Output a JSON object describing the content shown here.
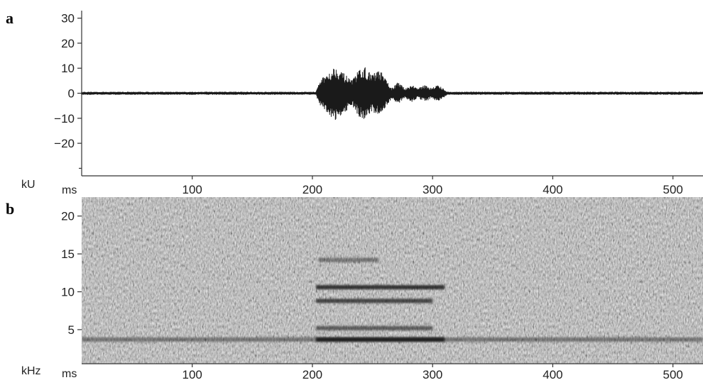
{
  "chart_data": [
    {
      "panel": "a",
      "type": "line",
      "title": "",
      "y_unit": "kU",
      "x_unit": "ms",
      "xlim": [
        8,
        525
      ],
      "ylim": [
        -33,
        33
      ],
      "x_ticks": [
        100,
        200,
        300,
        400,
        500
      ],
      "y_ticks": [
        30,
        20,
        10,
        0,
        -10,
        -20
      ],
      "y_tick_labels": [
        "30",
        "20",
        "10",
        "0",
        "−10",
        "−20"
      ],
      "grid": false,
      "series": [
        {
          "color": "#1a1a1a",
          "noise_amplitude": 0.6,
          "envelope": [
            {
              "x": 203,
              "y": 0.6
            },
            {
              "x": 206,
              "y": 5
            },
            {
              "x": 212,
              "y": 8
            },
            {
              "x": 219,
              "y": 11
            },
            {
              "x": 226,
              "y": 8
            },
            {
              "x": 233,
              "y": 5
            },
            {
              "x": 238,
              "y": 9
            },
            {
              "x": 243,
              "y": 11
            },
            {
              "x": 249,
              "y": 7.5
            },
            {
              "x": 256,
              "y": 9.5
            },
            {
              "x": 262,
              "y": 5
            },
            {
              "x": 266,
              "y": 2
            },
            {
              "x": 271,
              "y": 4.5
            },
            {
              "x": 277,
              "y": 2
            },
            {
              "x": 283,
              "y": 3.5
            },
            {
              "x": 288,
              "y": 2
            },
            {
              "x": 294,
              "y": 3.5
            },
            {
              "x": 299,
              "y": 2
            },
            {
              "x": 304,
              "y": 3.5
            },
            {
              "x": 309,
              "y": 2
            },
            {
              "x": 312,
              "y": 0.6
            }
          ]
        }
      ]
    },
    {
      "panel": "b",
      "type": "heatmap",
      "title": "",
      "y_unit": "kHz",
      "x_unit": "ms",
      "xlim": [
        8,
        525
      ],
      "ylim": [
        0.5,
        22.5
      ],
      "x_ticks": [
        100,
        200,
        300,
        400,
        500
      ],
      "y_ticks": [
        20,
        15,
        10,
        5
      ],
      "colors": {
        "background": "#8c8c8c",
        "band": "#1c1c1c"
      },
      "bands": [
        {
          "freq": 3.7,
          "x_start": 8,
          "x_end": 525,
          "intensity": 0.45
        },
        {
          "freq": 3.7,
          "x_start": 203,
          "x_end": 310,
          "intensity": 0.95
        },
        {
          "freq": 5.2,
          "x_start": 203,
          "x_end": 300,
          "intensity": 0.6
        },
        {
          "freq": 8.8,
          "x_start": 203,
          "x_end": 300,
          "intensity": 0.75
        },
        {
          "freq": 10.6,
          "x_start": 203,
          "x_end": 310,
          "intensity": 0.85
        },
        {
          "freq": 14.2,
          "x_start": 205,
          "x_end": 255,
          "intensity": 0.45
        }
      ]
    }
  ]
}
